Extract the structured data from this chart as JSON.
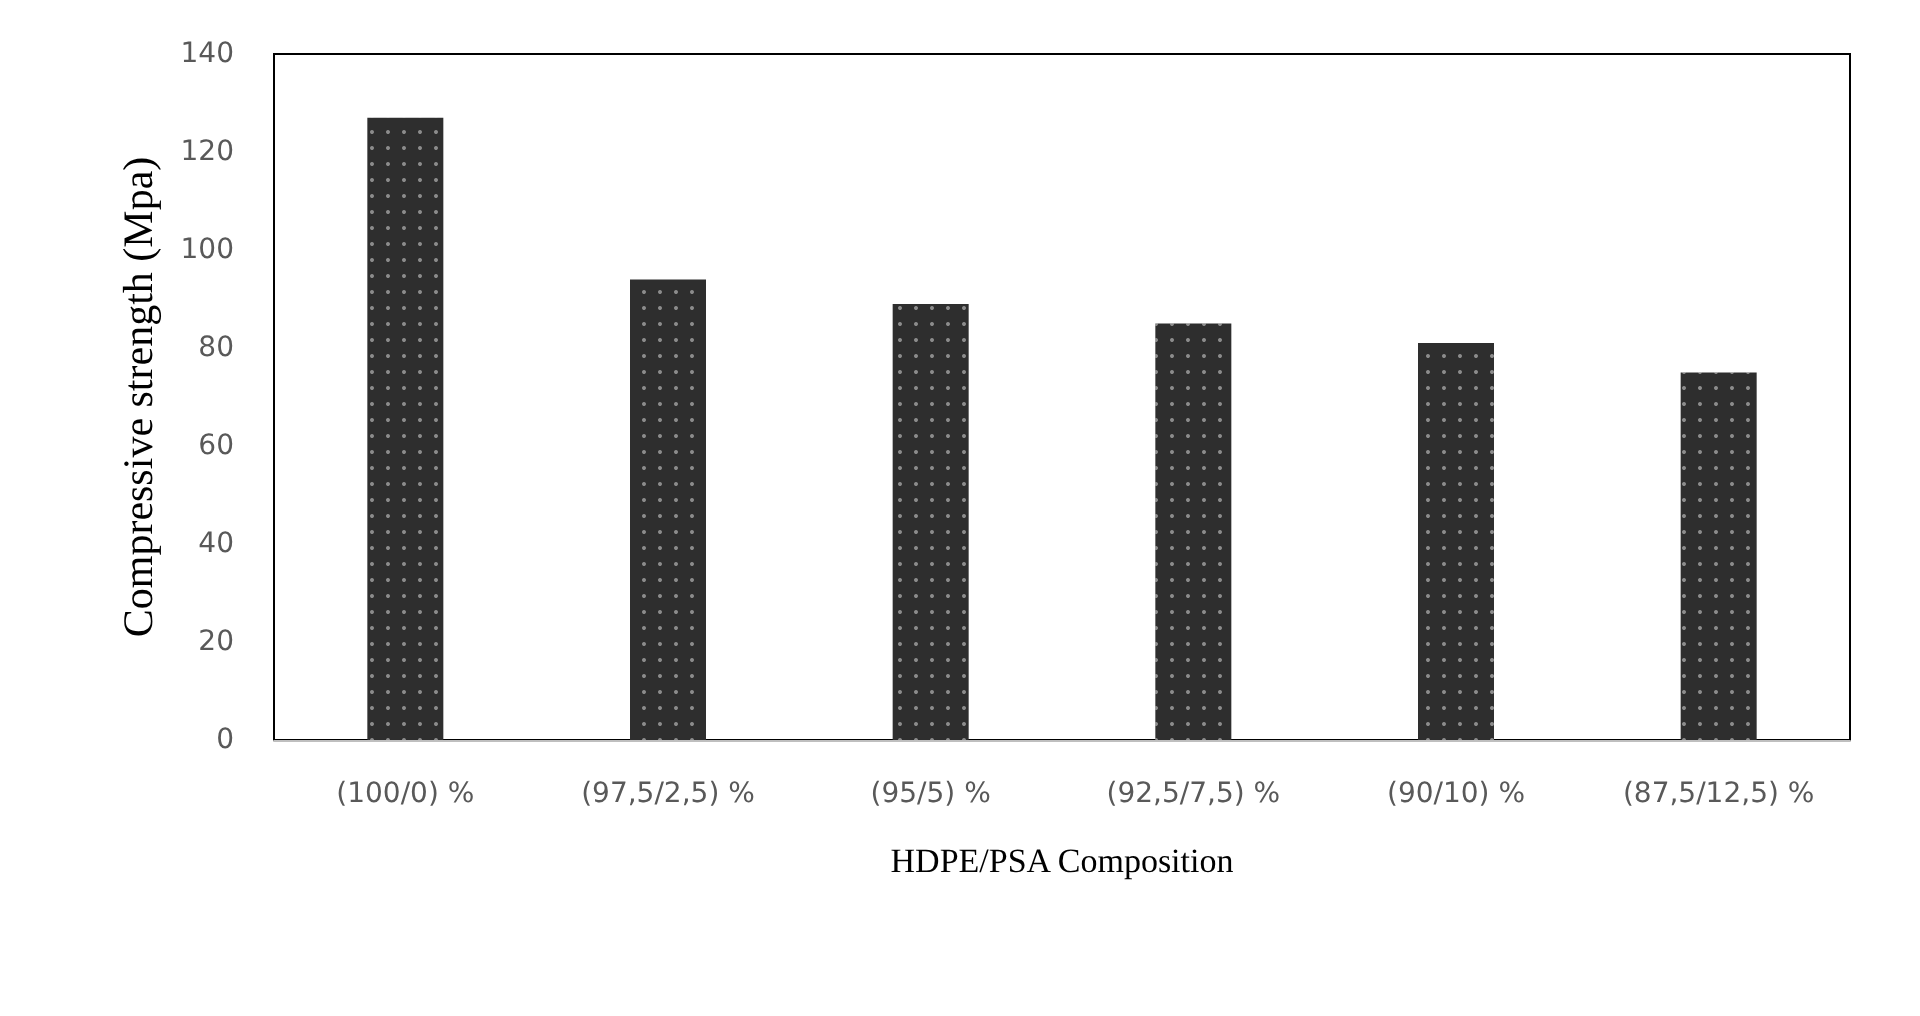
{
  "chart_data": {
    "type": "bar",
    "xlabel": "HDPE/PSA Composition",
    "ylabel": "Compressive strength (Mpa)",
    "categories": [
      "(100/0) %",
      "(97,5/2,5) %",
      "(95/5) %",
      "(92,5/7,5) %",
      "(90/10) %",
      "(87,5/12,5) %"
    ],
    "values": [
      127,
      94,
      89,
      85,
      81,
      75
    ],
    "color": "#2e2e2e",
    "ylim": [
      0,
      140
    ],
    "yticks": [
      0,
      20,
      40,
      60,
      80,
      100,
      120,
      140
    ],
    "grid": false
  }
}
